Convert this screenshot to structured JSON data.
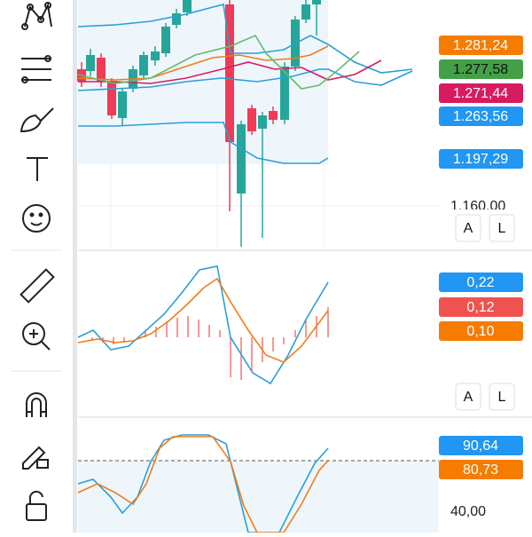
{
  "price_panel": {
    "labels": [
      "1.281,24",
      "1.277,58",
      "1.271,44",
      "1.263,56",
      "1.197,29"
    ],
    "axis_label": "1.160,00",
    "buttons": [
      "A",
      "L"
    ]
  },
  "macd_panel": {
    "labels": [
      "0,22",
      "0,12",
      "0,10"
    ],
    "buttons": [
      "A",
      "L"
    ]
  },
  "stoch_panel": {
    "labels": [
      "90,64",
      "80,73"
    ],
    "axis_label": "40,00"
  }
}
